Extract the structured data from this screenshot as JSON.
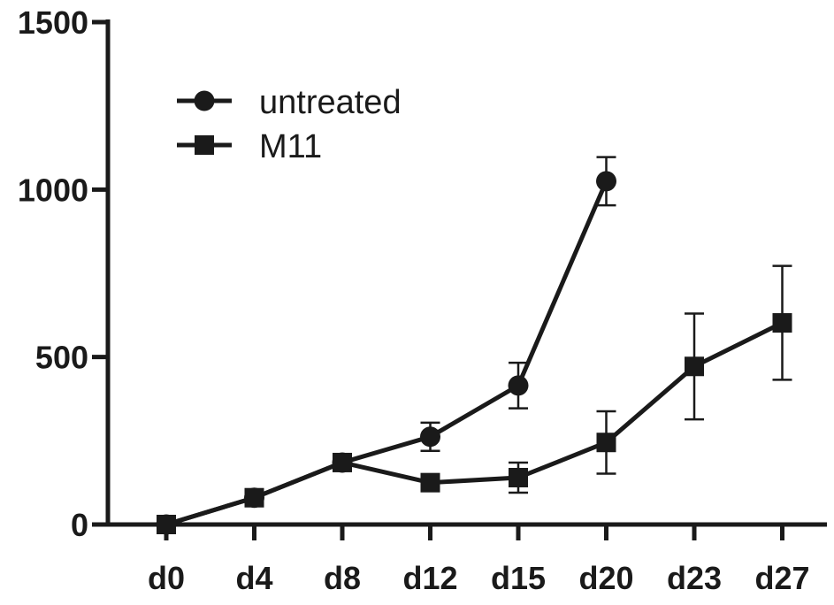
{
  "chart_data": {
    "type": "line",
    "title": "",
    "xlabel": "",
    "ylabel": "",
    "categories": [
      "d0",
      "d4",
      "d8",
      "d12",
      "d15",
      "d20",
      "d23",
      "d27"
    ],
    "yticks": [
      "0",
      "500",
      "1000",
      "1500"
    ],
    "ytick_values": [
      0,
      500,
      1000,
      1500
    ],
    "ylim": [
      0,
      1500
    ],
    "grid": false,
    "legend_position": "top-left",
    "series": [
      {
        "name": "untreated",
        "marker": "circle",
        "color": "#1a1a1a",
        "values": [
          0,
          80,
          185,
          262,
          415,
          1025,
          null,
          null
        ],
        "errors": [
          0,
          10,
          15,
          42,
          68,
          72,
          null,
          null
        ]
      },
      {
        "name": "M11",
        "marker": "square",
        "color": "#1a1a1a",
        "values": [
          0,
          80,
          185,
          125,
          140,
          245,
          472,
          602
        ],
        "errors": [
          0,
          10,
          15,
          18,
          45,
          93,
          158,
          170
        ]
      }
    ]
  }
}
